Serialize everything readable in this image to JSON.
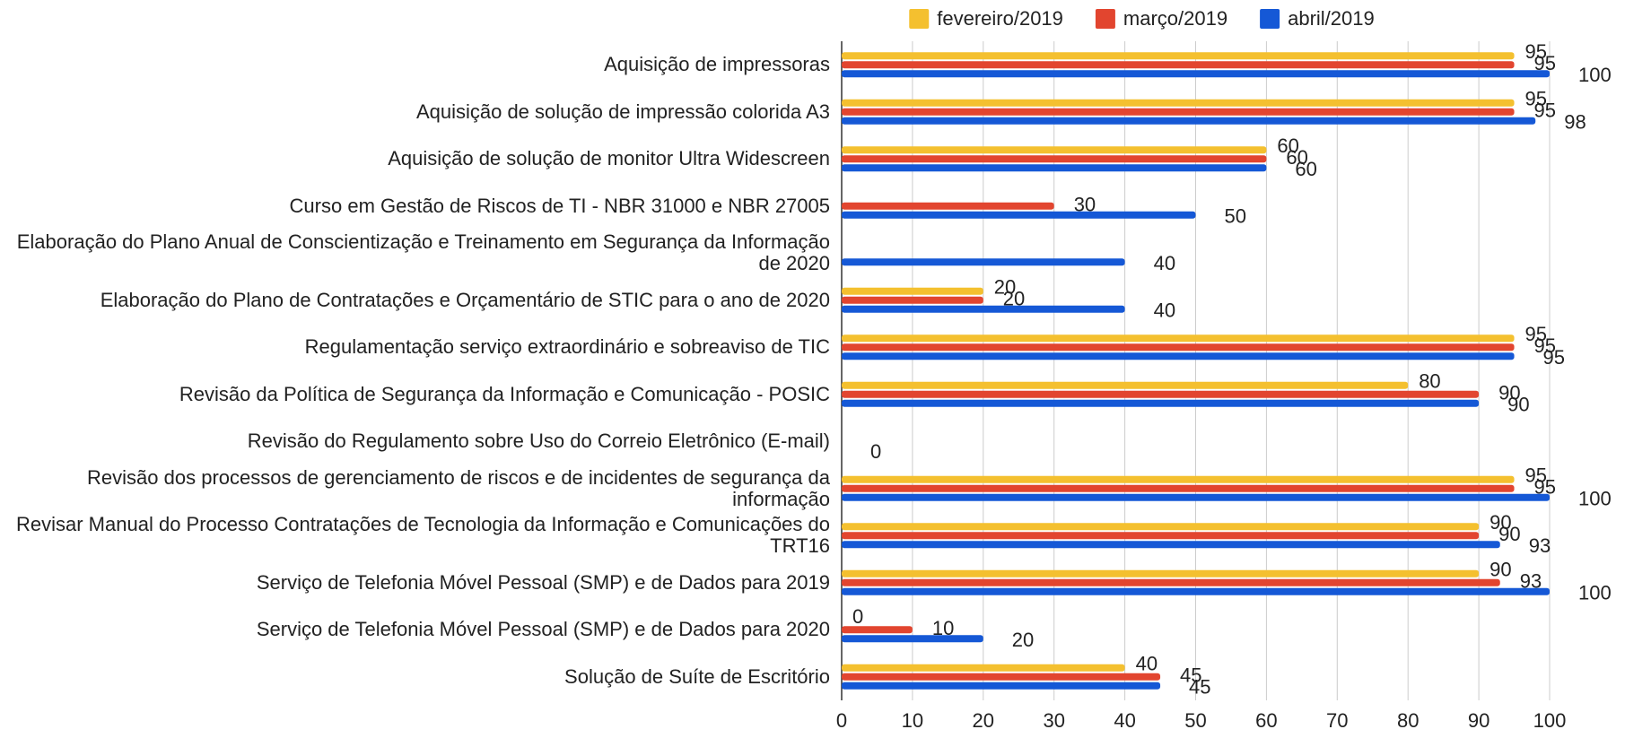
{
  "chart_data": {
    "type": "hbar",
    "categories": [
      "Aquisição de impressoras",
      "Aquisição de solução de impressão colorida A3",
      "Aquisição de solução de monitor Ultra Widescreen",
      "Curso em Gestão de Riscos de TI - NBR 31000 e NBR 27005",
      "Elaboração do Plano Anual de Conscientização e Treinamento em Segurança da Informação de 2020",
      "Elaboração do Plano de Contratações e Orçamentário de STIC para o ano de 2020",
      "Regulamentação serviço extraordinário e sobreaviso de TIC",
      "Revisão da Política de Segurança da Informação e Comunicação - POSIC",
      "Revisão do Regulamento sobre Uso do Correio Eletrônico (E-mail)",
      "Revisão dos processos de gerenciamento de riscos e de incidentes de segurança da informação",
      "Revisar Manual do Processo Contratações de Tecnologia da Informação e Comunicações do TRT16",
      "Serviço de Telefonia Móvel Pessoal (SMP) e de Dados para 2019",
      "Serviço de Telefonia Móvel Pessoal (SMP) e de Dados para 2020",
      "Solução de Suíte de Escritório"
    ],
    "series": [
      {
        "name": "fevereiro/2019",
        "color": "#f4c02f",
        "values": [
          95,
          95,
          60,
          null,
          null,
          20,
          95,
          80,
          null,
          95,
          90,
          90,
          0,
          40
        ]
      },
      {
        "name": "março/2019",
        "color": "#e2452f",
        "values": [
          95,
          95,
          60,
          30,
          null,
          20,
          95,
          90,
          null,
          95,
          90,
          93,
          10,
          45
        ]
      },
      {
        "name": "abril/2019",
        "color": "#1558d6",
        "values": [
          100,
          98,
          60,
          50,
          40,
          40,
          95,
          90,
          0,
          100,
          93,
          100,
          20,
          45
        ]
      }
    ],
    "xlim": [
      0,
      100
    ],
    "xticks": [
      0,
      10,
      20,
      30,
      40,
      50,
      60,
      70,
      80,
      90,
      100
    ],
    "grid": true,
    "legend": "top"
  }
}
